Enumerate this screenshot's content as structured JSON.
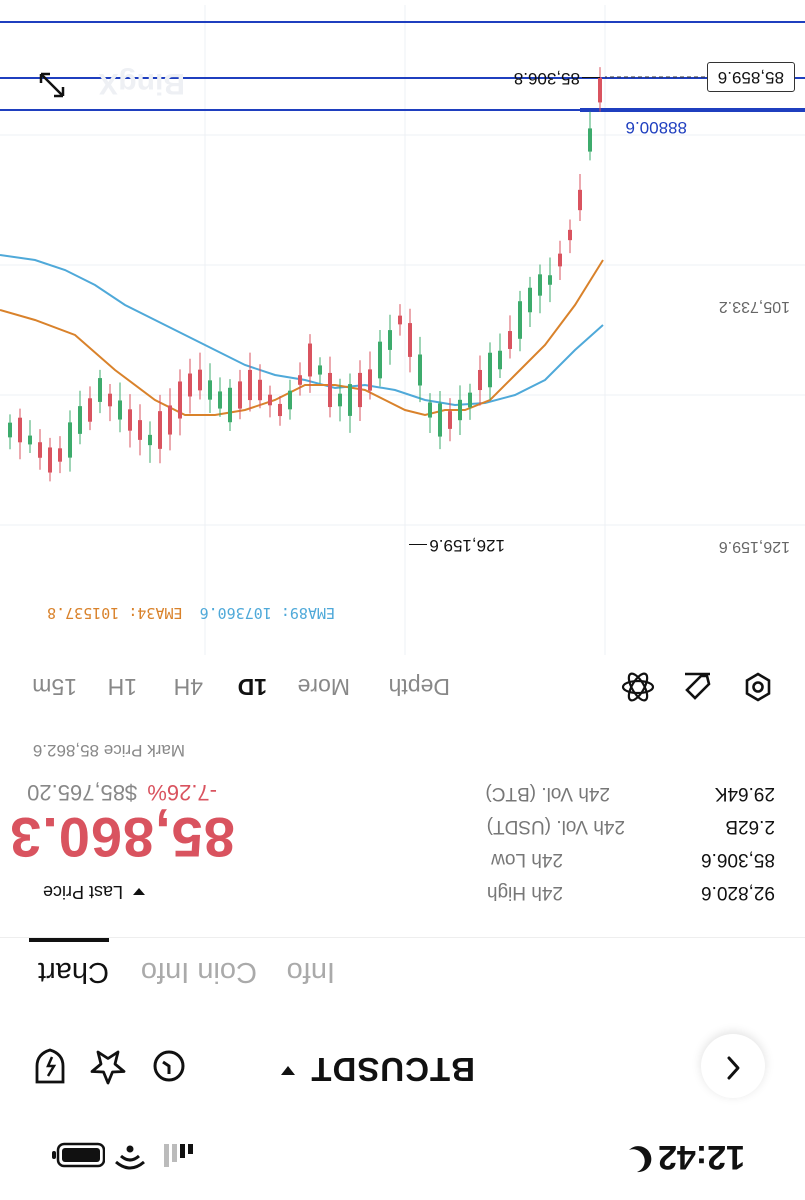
{
  "status_bar": {
    "time": "12:42"
  },
  "nav": {
    "pair": "BTCUSDT"
  },
  "tabs": [
    {
      "label": "Chart"
    },
    {
      "label": "Coin Info"
    },
    {
      "label": "Info"
    }
  ],
  "market": {
    "last_price_label": "Last Price",
    "last_price": "85,860.3",
    "usd_price": "$85,765.20",
    "change": "-7.26%",
    "mark_price": "Mark Price 85,862.6",
    "stats": [
      {
        "label": "24h High",
        "value": "92,820.6"
      },
      {
        "label": "24h Low",
        "value": "85,306.6"
      },
      {
        "label": "24h Vol. (USDT)",
        "value": "2.62B"
      },
      {
        "label": "24h Vol. (BTC)",
        "value": "29.64K"
      }
    ]
  },
  "timeframes": [
    "15m",
    "1H",
    "4H",
    "1D",
    "More",
    "Depth"
  ],
  "active_timeframe": "1D",
  "chart": {
    "watermark": "BingX",
    "ema34_label": "EMA34: 101537.8",
    "ema89_label": "EMA89: 107360.6",
    "axis_labels": [
      "126,159.6",
      "105,733.2"
    ],
    "high_marker": "126,159.6",
    "low_marker": "85,306.8",
    "current_price_tag": "85,859.6",
    "line_label": "88800.6",
    "colors": {
      "up": "#d9535f",
      "down": "#3dab6c",
      "ema34": "#d9822b",
      "ema89": "#4fa9d9",
      "line": "#1f3fbf"
    }
  }
}
